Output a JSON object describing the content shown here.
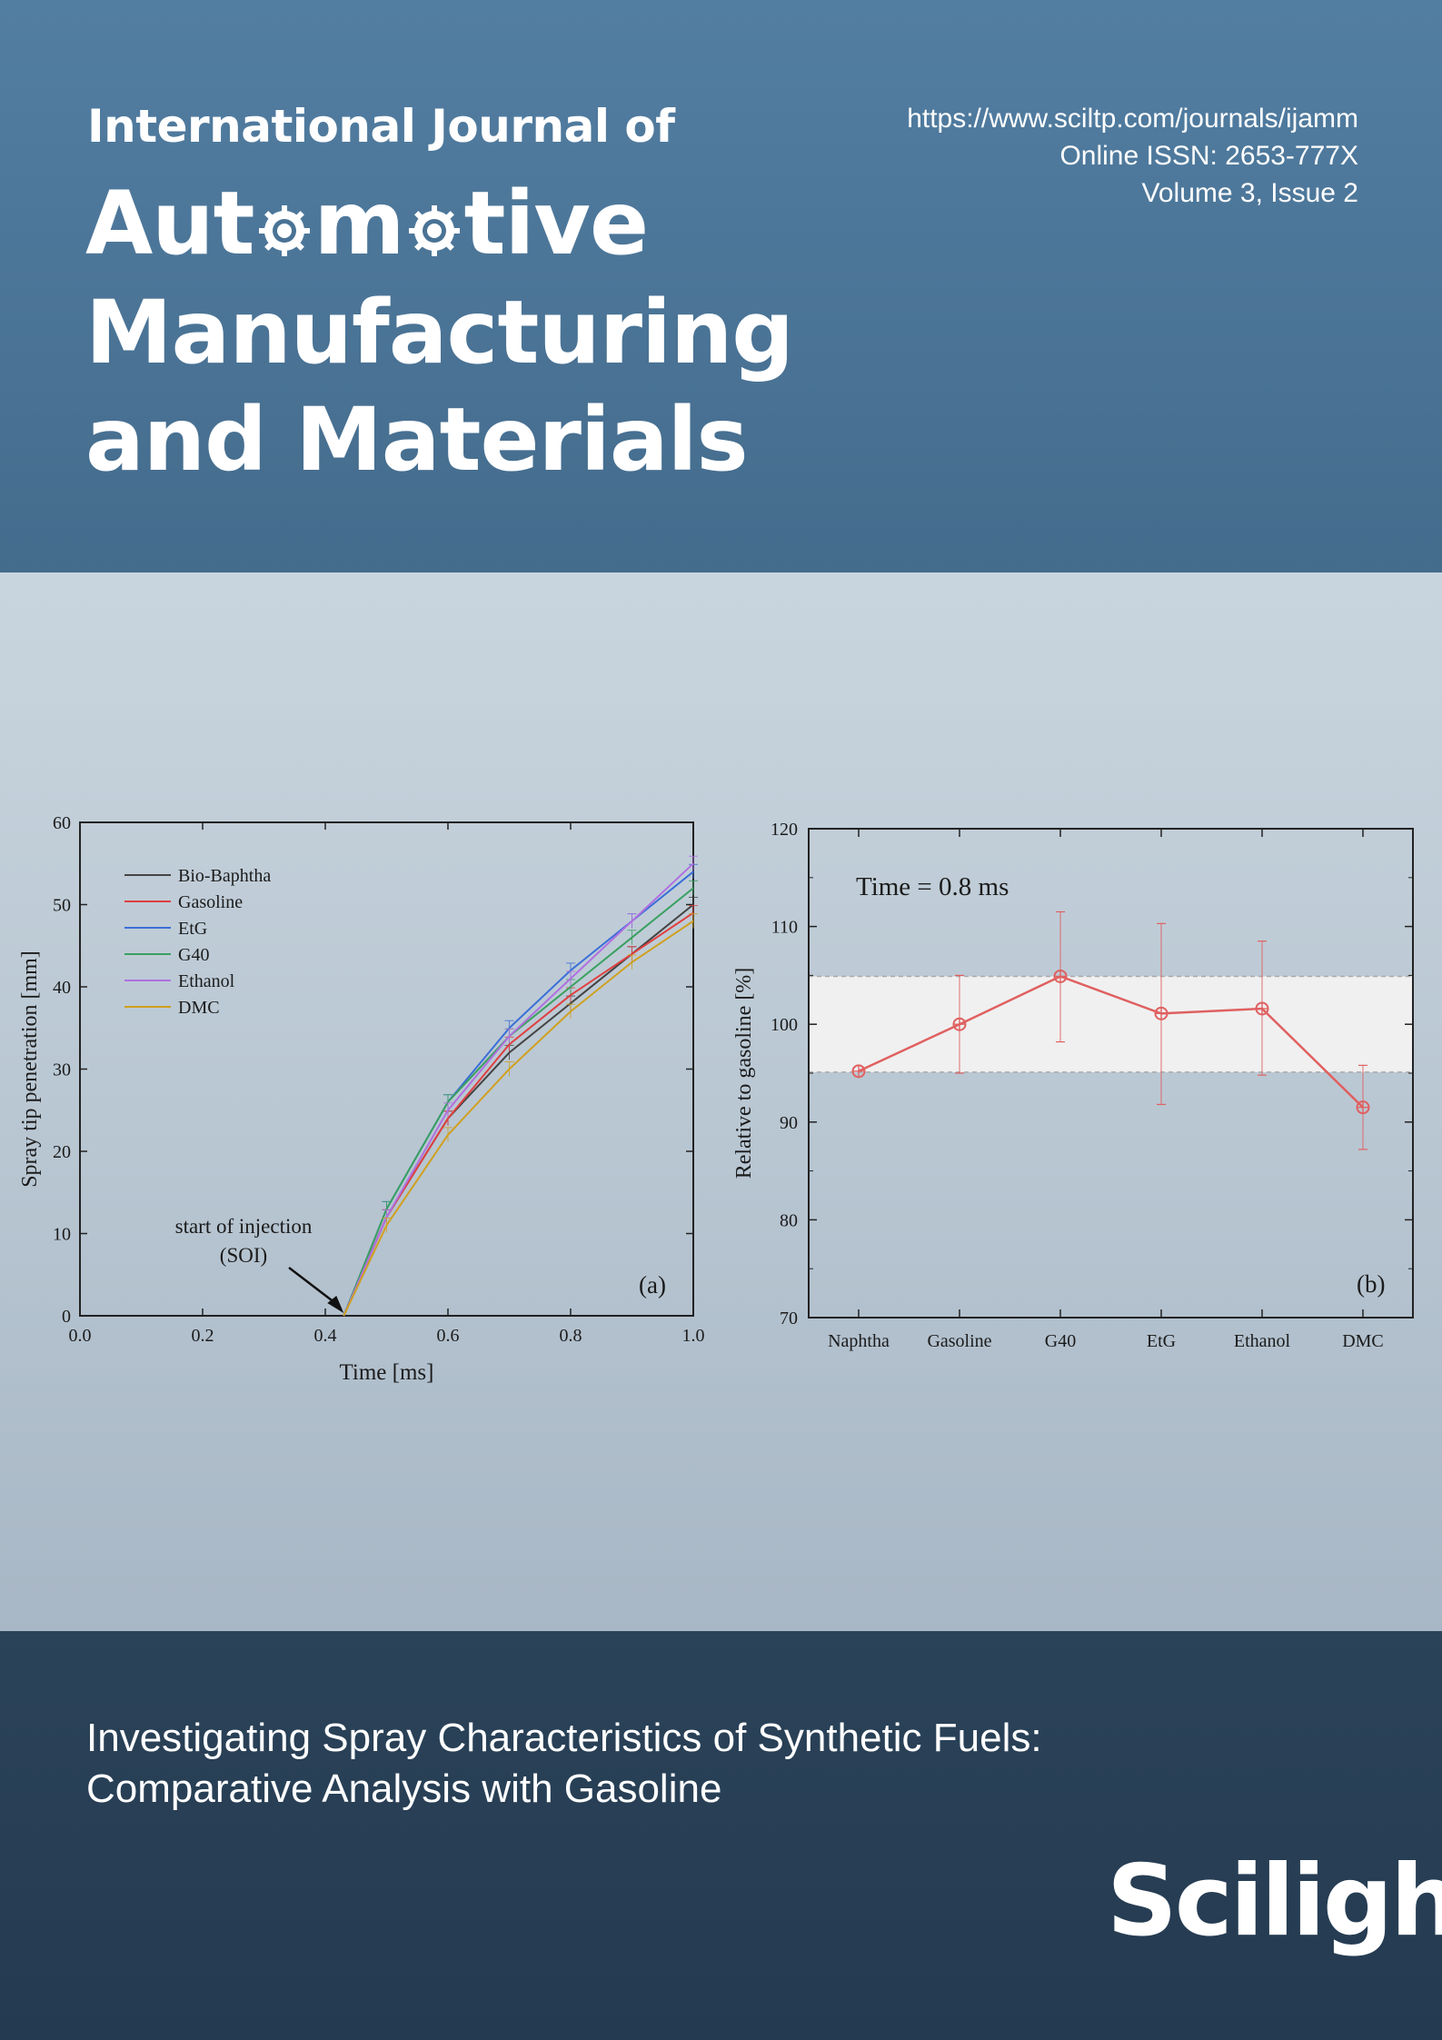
{
  "header": {
    "journal_prefix": "International Journal of",
    "journal_word1_a": "Aut",
    "journal_word1_b": "m",
    "journal_word1_c": "tive",
    "journal_word2": "Manufacturing",
    "journal_word3": "and Materials",
    "url": "https://www.sciltp.com/journals/ijamm",
    "issn": "Online ISSN: 2653-777X",
    "volume": "Volume 3, Issue 2"
  },
  "article": {
    "title_line1": "Investigating Spray Characteristics of Synthetic Fuels:",
    "title_line2": "Comparative Analysis with Gasoline"
  },
  "publisher": {
    "name": "Scilight"
  },
  "colors": {
    "top_band": "#4a7395",
    "bottom_band": "#243a50",
    "series_b": "#e06060"
  },
  "chart_data": [
    {
      "type": "line",
      "panel_label": "(a)",
      "xlabel": "Time [ms]",
      "ylabel": "Spray tip penetration [mm]",
      "xlim": [
        0.0,
        1.0
      ],
      "ylim": [
        0,
        60
      ],
      "xticks": [
        "0.0",
        "0.2",
        "0.4",
        "0.6",
        "0.8",
        "1.0"
      ],
      "yticks": [
        "0",
        "10",
        "20",
        "30",
        "40",
        "50",
        "60"
      ],
      "legend_position": "top-left",
      "annotation": {
        "line1": "start of injection",
        "line2": "(SOI)",
        "x": 0.43,
        "y": 0
      },
      "x": [
        0.43,
        0.5,
        0.6,
        0.7,
        0.8,
        0.9,
        1.0
      ],
      "series": [
        {
          "name": "Bio-Baphtha",
          "color": "#444444",
          "values": [
            0,
            12,
            24,
            32,
            38,
            44,
            50
          ]
        },
        {
          "name": "Gasoline",
          "color": "#e04040",
          "values": [
            0,
            12,
            24,
            33,
            39,
            44,
            49
          ]
        },
        {
          "name": "EtG",
          "color": "#3a6fd8",
          "values": [
            0,
            13,
            26,
            35,
            42,
            48,
            54
          ]
        },
        {
          "name": "G40",
          "color": "#3aa060",
          "values": [
            0,
            13,
            26,
            34,
            40,
            46,
            52
          ]
        },
        {
          "name": "Ethanol",
          "color": "#b070e0",
          "values": [
            0,
            12,
            25,
            34,
            41,
            48,
            55
          ]
        },
        {
          "name": "DMC",
          "color": "#d0a020",
          "values": [
            0,
            11,
            22,
            30,
            37,
            43,
            48
          ]
        }
      ]
    },
    {
      "type": "line",
      "panel_label": "(b)",
      "annotation_text": "Time = 0.8 ms",
      "xlabel": "",
      "ylabel": "Relative to gasoline [%]",
      "ylim": [
        70,
        120
      ],
      "yticks": [
        "70",
        "80",
        "90",
        "100",
        "110",
        "120"
      ],
      "categories": [
        "Naphtha",
        "Gasoline",
        "G40",
        "EtG",
        "Ethanol",
        "DMC"
      ],
      "values": [
        95.2,
        100,
        104.9,
        101.1,
        101.6,
        91.5
      ],
      "error_bars": [
        [
          null,
          null
        ],
        [
          95,
          105
        ],
        [
          98.2,
          111.5
        ],
        [
          91.8,
          110.3
        ],
        [
          94.8,
          108.5
        ],
        [
          87.2,
          95.8
        ]
      ],
      "band": [
        95.1,
        104.9
      ]
    }
  ]
}
